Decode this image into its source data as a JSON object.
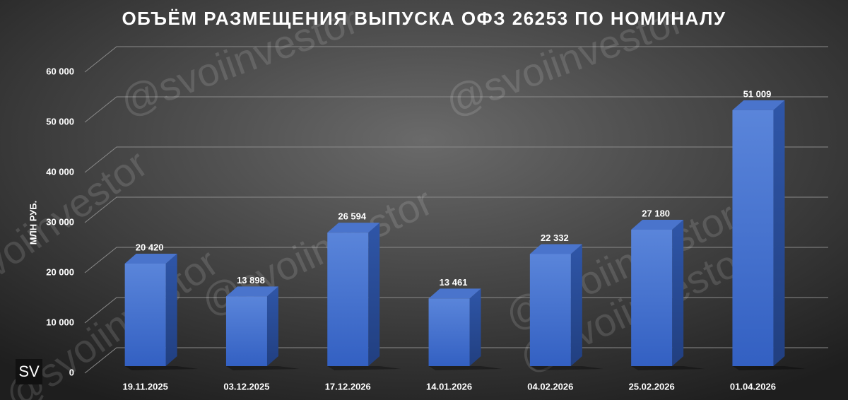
{
  "chart_data": {
    "type": "bar3d",
    "title": "ОБЪЁМ РАЗМЕЩЕНИЯ ВЫПУСКА ОФЗ 26253 ПО НОМИНАЛУ",
    "y_label": "МЛН РУБ.",
    "categories": [
      "19.11.2025",
      "03.12.2025",
      "17.12.2026",
      "14.01.2026",
      "04.02.2026",
      "25.02.2026",
      "01.04.2026"
    ],
    "values": [
      20420,
      13898,
      26594,
      13461,
      22332,
      27180,
      51009
    ],
    "value_labels": [
      "20 420",
      "13 898",
      "26 594",
      "13 461",
      "22 332",
      "27 180",
      "51 009"
    ],
    "color": "#4472c4",
    "ylim": [
      0,
      60000
    ],
    "yticks": [
      0,
      {
        "value": 10000,
        "label": "10 000"
      },
      {
        "value": 20000,
        "label": "20 000"
      },
      {
        "value": 30000,
        "label": "30 000"
      },
      {
        "value": 40000,
        "label": "40 000"
      },
      {
        "value": 50000,
        "label": "50 000"
      },
      {
        "value": 60000,
        "label": "60 000"
      }
    ],
    "grid": true,
    "watermark": "@svoiinvestor",
    "logo": "SV"
  }
}
